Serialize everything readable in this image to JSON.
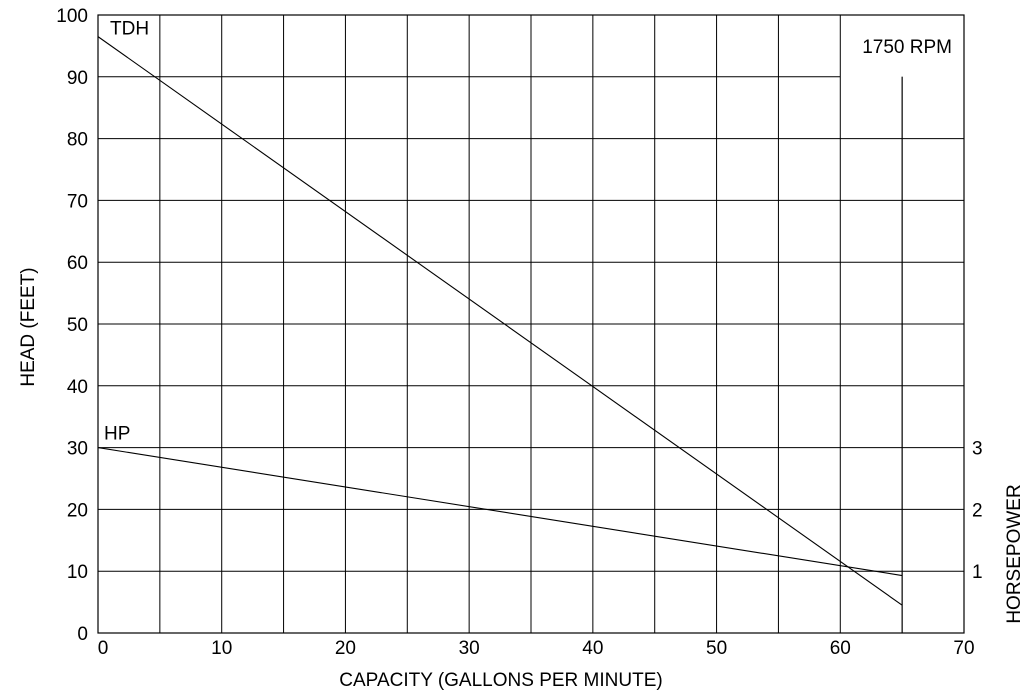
{
  "chart_data": {
    "type": "line",
    "title": "",
    "annotation": "1750 RPM",
    "xlabel": "CAPACITY (GALLONS PER MINUTE)",
    "ylabel": "HEAD (FEET)",
    "y2label": "HORSEPOWER",
    "xlim": [
      0,
      70
    ],
    "ylim": [
      0,
      100
    ],
    "y2lim": [
      0,
      10
    ],
    "x_ticks": [
      0,
      10,
      20,
      30,
      40,
      50,
      60,
      70
    ],
    "y_ticks": [
      0,
      10,
      20,
      30,
      40,
      50,
      60,
      70,
      80,
      90,
      100
    ],
    "y2_ticks": [
      1,
      2,
      3
    ],
    "grid": true,
    "series": [
      {
        "name": "TDH",
        "axis": "y",
        "x": [
          0,
          65
        ],
        "y": [
          96.5,
          4.5
        ]
      },
      {
        "name": "HP",
        "axis": "y2",
        "x": [
          0,
          65
        ],
        "y": [
          3.0,
          0.93
        ]
      }
    ]
  }
}
